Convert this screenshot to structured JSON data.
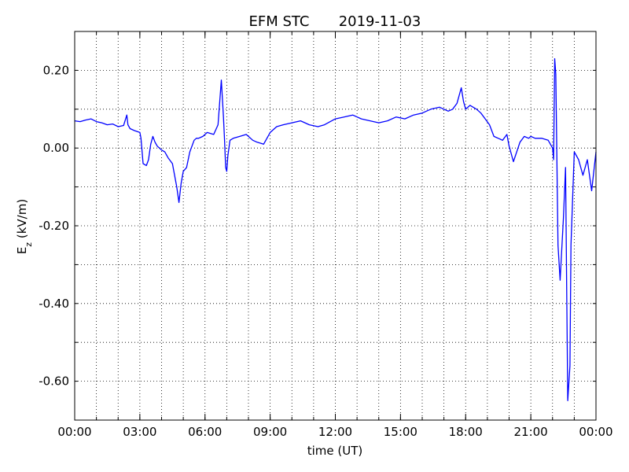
{
  "chart_data": {
    "type": "line",
    "title": "EFM STC",
    "date": "2019-11-03",
    "xlabel": "time (UT)",
    "ylabel": {
      "base": "E",
      "sub": "z",
      "rest": " (kV/m)"
    },
    "xlim_hours": [
      0,
      24
    ],
    "ylim": [
      -0.7,
      0.3
    ],
    "x_ticks": [
      {
        "hour": 0,
        "label": "00:00"
      },
      {
        "hour": 3,
        "label": "03:00"
      },
      {
        "hour": 6,
        "label": "06:00"
      },
      {
        "hour": 9,
        "label": "09:00"
      },
      {
        "hour": 12,
        "label": "12:00"
      },
      {
        "hour": 15,
        "label": "15:00"
      },
      {
        "hour": 18,
        "label": "18:00"
      },
      {
        "hour": 21,
        "label": "21:00"
      },
      {
        "hour": 24,
        "label": "00:00"
      }
    ],
    "y_ticks": [
      {
        "value": 0.2,
        "label": "0.20"
      },
      {
        "value": 0.0,
        "label": "0.00"
      },
      {
        "value": -0.2,
        "label": "-0.20"
      },
      {
        "value": -0.4,
        "label": "-0.40"
      },
      {
        "value": -0.6,
        "label": "-0.60"
      }
    ],
    "grid": true,
    "series": [
      {
        "color": "#0000ff",
        "x": [
          0.0,
          0.25,
          0.5,
          0.75,
          1.0,
          1.25,
          1.5,
          1.75,
          2.0,
          2.25,
          2.4,
          2.45,
          2.55,
          2.75,
          3.0,
          3.05,
          3.15,
          3.3,
          3.4,
          3.5,
          3.6,
          3.7,
          3.8,
          3.9,
          4.0,
          4.15,
          4.3,
          4.5,
          4.7,
          4.8,
          4.9,
          5.0,
          5.15,
          5.3,
          5.5,
          5.6,
          5.7,
          5.9,
          6.1,
          6.4,
          6.6,
          6.75,
          6.85,
          6.9,
          6.95,
          7.0,
          7.05,
          7.15,
          7.3,
          7.6,
          7.9,
          8.2,
          8.4,
          8.7,
          9.0,
          9.3,
          9.6,
          10.0,
          10.4,
          10.8,
          11.2,
          11.5,
          12.0,
          12.4,
          12.8,
          13.2,
          13.6,
          14.0,
          14.4,
          14.8,
          15.2,
          15.6,
          16.0,
          16.4,
          16.8,
          17.2,
          17.4,
          17.6,
          17.8,
          17.9,
          18.0,
          18.2,
          18.5,
          18.7,
          18.9,
          19.1,
          19.3,
          19.5,
          19.7,
          19.9,
          20.0,
          20.2,
          20.5,
          20.7,
          20.9,
          21.0,
          21.2,
          21.5,
          21.8,
          22.0,
          22.05,
          22.1,
          22.15,
          22.25,
          22.35,
          22.5,
          22.6,
          22.7,
          22.8,
          22.85,
          23.0,
          23.2,
          23.4,
          23.6,
          23.8,
          24.0
        ],
        "y": [
          0.07,
          0.068,
          0.072,
          0.075,
          0.068,
          0.065,
          0.06,
          0.062,
          0.055,
          0.058,
          0.085,
          0.06,
          0.05,
          0.045,
          0.04,
          0.025,
          -0.04,
          -0.045,
          -0.03,
          0.01,
          0.03,
          0.015,
          0.005,
          0.0,
          -0.005,
          -0.01,
          -0.025,
          -0.04,
          -0.1,
          -0.14,
          -0.09,
          -0.06,
          -0.05,
          -0.01,
          0.02,
          0.025,
          0.025,
          0.03,
          0.04,
          0.035,
          0.06,
          0.175,
          0.08,
          0.02,
          -0.05,
          -0.06,
          -0.02,
          0.02,
          0.025,
          0.03,
          0.035,
          0.02,
          0.015,
          0.01,
          0.04,
          0.055,
          0.06,
          0.065,
          0.07,
          0.06,
          0.055,
          0.06,
          0.075,
          0.08,
          0.085,
          0.075,
          0.07,
          0.065,
          0.07,
          0.08,
          0.075,
          0.085,
          0.09,
          0.1,
          0.105,
          0.095,
          0.1,
          0.115,
          0.155,
          0.12,
          0.1,
          0.11,
          0.1,
          0.09,
          0.075,
          0.06,
          0.03,
          0.025,
          0.02,
          0.035,
          0.005,
          -0.035,
          0.015,
          0.03,
          0.025,
          0.03,
          0.025,
          0.025,
          0.02,
          0.0,
          -0.03,
          0.23,
          0.19,
          -0.25,
          -0.34,
          -0.18,
          -0.05,
          -0.65,
          -0.56,
          -0.25,
          -0.01,
          -0.03,
          -0.07,
          -0.03,
          -0.11,
          -0.01
        ]
      }
    ]
  }
}
